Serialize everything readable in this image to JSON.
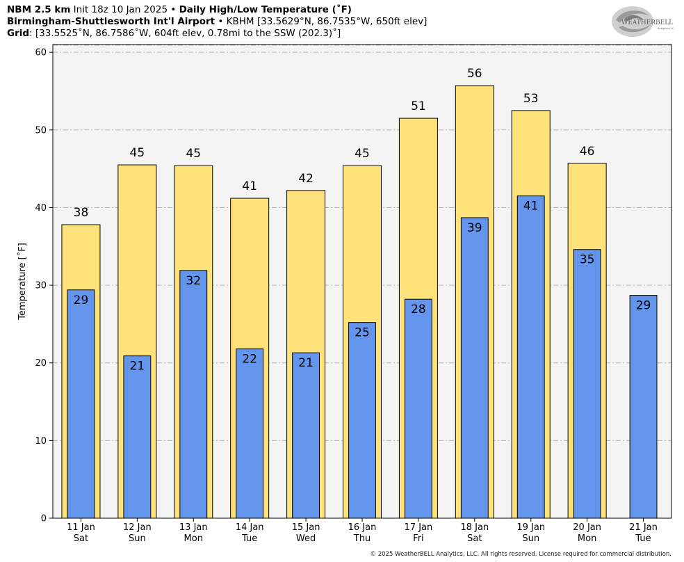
{
  "header": {
    "line1_bold1": "NBM 2.5 km",
    "line1_normal": " Init 18z 10 Jan 2025 • ",
    "line1_bold2": "Daily High/Low Temperature (˚F)",
    "line2_bold": "Birmingham-Shuttlesworth Int'l Airport",
    "line2_normal": " • KBHM [33.5629°N, 86.7535°W, 650ft elev]",
    "line3_bold": "Grid",
    "line3_normal": ": [33.5525˚N, 86.7586˚W, 604ft elev, 0.78mi to the SSW (202.3)˚]"
  },
  "logo": {
    "text_main": "WEATHERBELL",
    "text_sub": "Analytics LLC"
  },
  "footer": "© 2025 WeatherBELL Analytics, LLC. All rights reserved. License required for commercial distribution.",
  "chart_data": {
    "type": "bar",
    "ylabel": "Temperature [˚F]",
    "ylim": [
      0,
      61
    ],
    "yticks": [
      0,
      10,
      20,
      30,
      40,
      50,
      60
    ],
    "grid": true,
    "categories": [
      {
        "date": "11 Jan",
        "day": "Sat"
      },
      {
        "date": "12 Jan",
        "day": "Sun"
      },
      {
        "date": "13 Jan",
        "day": "Mon"
      },
      {
        "date": "14 Jan",
        "day": "Tue"
      },
      {
        "date": "15 Jan",
        "day": "Wed"
      },
      {
        "date": "16 Jan",
        "day": "Thu"
      },
      {
        "date": "17 Jan",
        "day": "Fri"
      },
      {
        "date": "18 Jan",
        "day": "Sat"
      },
      {
        "date": "19 Jan",
        "day": "Sun"
      },
      {
        "date": "20 Jan",
        "day": "Mon"
      },
      {
        "date": "21 Jan",
        "day": "Tue"
      }
    ],
    "series": [
      {
        "values": [
          37.8,
          45.5,
          45.4,
          41.2,
          42.2,
          45.4,
          51.5,
          55.7,
          52.5,
          45.7,
          null
        ],
        "labels": [
          "38",
          "45",
          "45",
          "41",
          "42",
          "45",
          "51",
          "56",
          "53",
          "46",
          ""
        ],
        "color": "#ffe37a"
      },
      {
        "values": [
          29.4,
          20.9,
          31.9,
          21.8,
          21.3,
          25.2,
          28.2,
          38.7,
          41.5,
          34.6,
          28.7
        ],
        "labels": [
          "29",
          "21",
          "32",
          "22",
          "21",
          "25",
          "28",
          "39",
          "41",
          "35",
          "29"
        ],
        "color": "#6495ed"
      }
    ]
  }
}
